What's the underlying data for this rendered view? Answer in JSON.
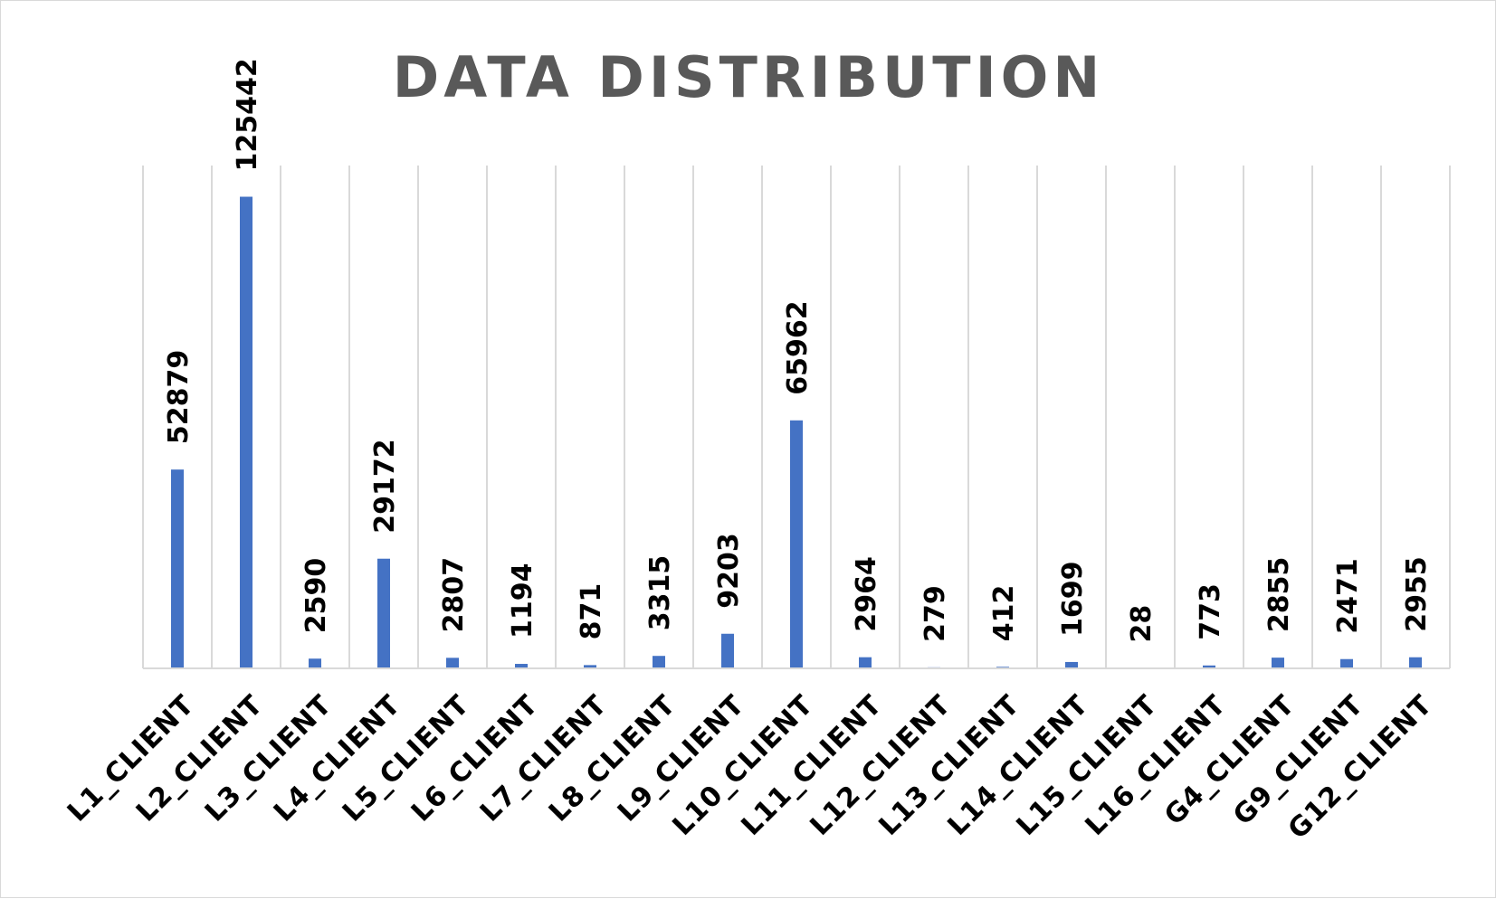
{
  "chart_data": {
    "type": "bar",
    "title": "DATA DISTRIBUTION",
    "xlabel": "",
    "ylabel": "",
    "categories": [
      "L1_CLIENT",
      "L2_CLIENT",
      "L3_CLIENT",
      "L4_CLIENT",
      "L5_CLIENT",
      "L6_CLIENT",
      "L7_CLIENT",
      "L8_CLIENT",
      "L9_CLIENT",
      "L10_CLIENT",
      "L11_CLIENT",
      "L12_CLIENT",
      "L13_CLIENT",
      "L14_CLIENT",
      "L15_CLIENT",
      "L16_CLIENT",
      "G4_CLIENT",
      "G9_CLIENT",
      "G12_CLIENT"
    ],
    "values": [
      52879,
      125442,
      2590,
      29172,
      2807,
      1194,
      871,
      3315,
      9203,
      65962,
      2964,
      279,
      412,
      1699,
      28,
      773,
      2855,
      2471,
      2955
    ],
    "ylim": [
      0,
      140000
    ],
    "bar_color": "#4472c4",
    "grid": "vertical",
    "legend": "none",
    "data_labels": true
  }
}
